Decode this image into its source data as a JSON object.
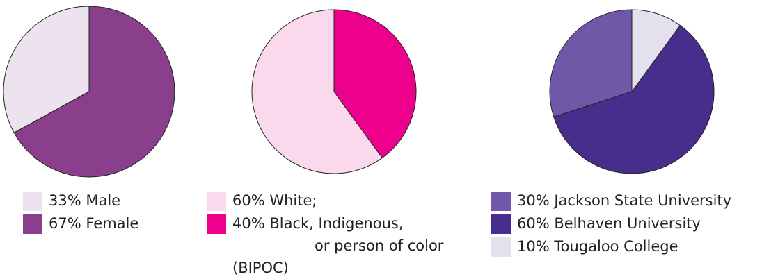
{
  "chart_data": [
    {
      "type": "pie",
      "categories": [
        "33% Male",
        "67% Female"
      ],
      "values": [
        33,
        67
      ],
      "colors": [
        "#ece3ef",
        "#8a3f8d"
      ]
    },
    {
      "type": "pie",
      "categories": [
        "60% White;",
        "40% Black, Indigenous,\nor person of color\n(BIPOC)"
      ],
      "values": [
        60,
        40
      ],
      "colors": [
        "#fbd9ec",
        "#ec008c"
      ]
    },
    {
      "type": "pie",
      "categories": [
        "30% Jackson State University",
        "60% Belhaven University",
        "10% Tougaloo College"
      ],
      "values": [
        30,
        60,
        10
      ],
      "colors": [
        "#6f58a8",
        "#472d8c",
        "#e4e0ee"
      ]
    }
  ]
}
